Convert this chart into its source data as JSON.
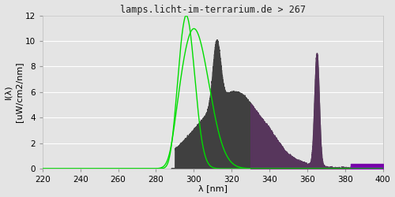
{
  "title": "lamps.licht-im-terrarium.de > 267",
  "xlabel": "λ [nm]",
  "ylabel": "I(λ)  [uW/cm2/nm]",
  "xlim": [
    220,
    400
  ],
  "ylim": [
    0,
    12
  ],
  "yticks": [
    0,
    2,
    4,
    6,
    8,
    10,
    12
  ],
  "xticks": [
    220,
    240,
    260,
    280,
    300,
    320,
    340,
    360,
    380,
    400
  ],
  "bg_color": "#e4e4e4",
  "grid_color": "#ffffff",
  "spectrum_dark": "#404040",
  "spectrum_purple": "#5a3560",
  "bright_purple": "#7700aa",
  "vitd3_color": "#00dd00",
  "title_fontsize": 8.5,
  "tick_fontsize": 7.5,
  "label_fontsize": 8
}
